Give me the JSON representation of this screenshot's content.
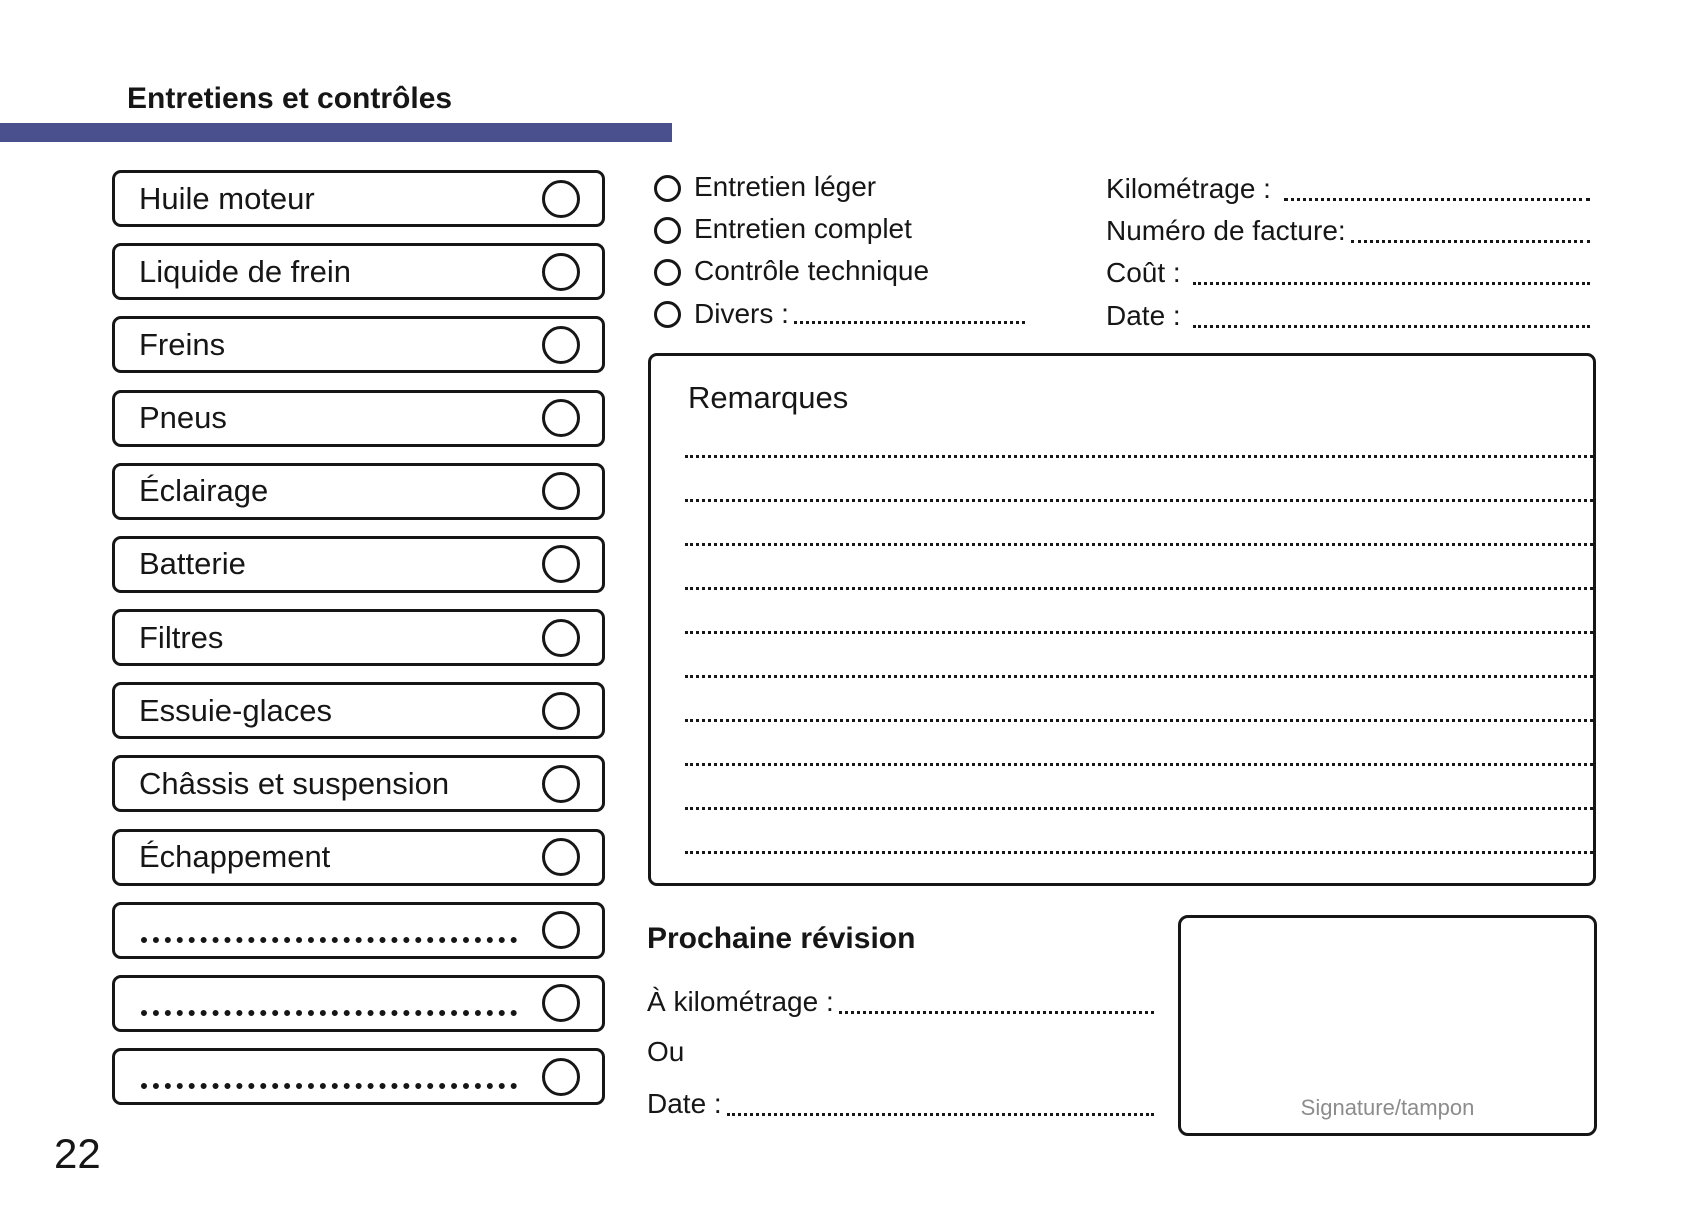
{
  "page": {
    "title": "Entretiens et contrôles",
    "page_number": "22"
  },
  "colors": {
    "accent_bar": "#4a4f8e",
    "ink": "#161616",
    "signature_text": "#8c8c8c"
  },
  "checklist": {
    "items": [
      {
        "label": "Huile moteur",
        "blank": false
      },
      {
        "label": "Liquide de frein",
        "blank": false
      },
      {
        "label": "Freins",
        "blank": false
      },
      {
        "label": "Pneus",
        "blank": false
      },
      {
        "label": "Éclairage",
        "blank": false
      },
      {
        "label": "Batterie",
        "blank": false
      },
      {
        "label": "Filtres",
        "blank": false
      },
      {
        "label": "Essuie-glaces",
        "blank": false
      },
      {
        "label": "Châssis et suspension",
        "blank": false
      },
      {
        "label": "Échappement",
        "blank": false
      },
      {
        "label": "",
        "blank": true
      },
      {
        "label": "",
        "blank": true
      },
      {
        "label": "",
        "blank": true
      }
    ]
  },
  "service_type": {
    "options": [
      {
        "label": "Entretien léger",
        "fill_in": false
      },
      {
        "label": "Entretien complet",
        "fill_in": false
      },
      {
        "label": "Contrôle technique",
        "fill_in": false
      },
      {
        "label": "Divers :",
        "fill_in": true
      }
    ]
  },
  "invoice_fields": [
    {
      "label": "Kilométrage : "
    },
    {
      "label": "Numéro de facture:"
    },
    {
      "label": "Coût : "
    },
    {
      "label": "Date : "
    }
  ],
  "remarks": {
    "title": "Remarques",
    "line_count": 10
  },
  "next_service": {
    "title": "Prochaine révision",
    "km_label": "À kilométrage :",
    "or_label": "Ou",
    "date_label": "Date :"
  },
  "signature": {
    "label": "Signature/tampon"
  }
}
